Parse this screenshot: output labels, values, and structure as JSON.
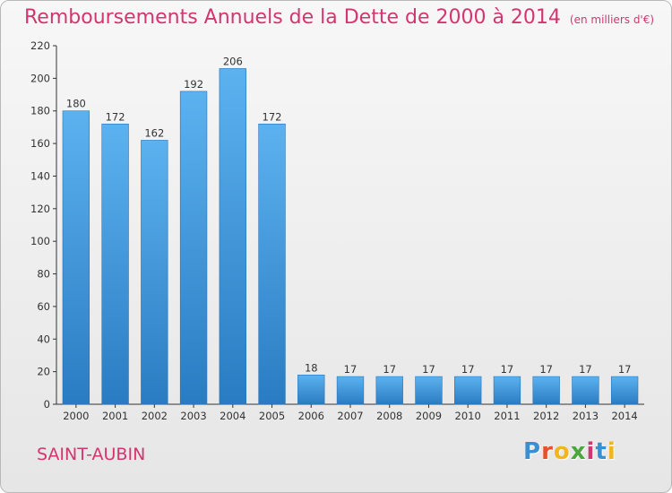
{
  "title": "Remboursements Annuels de la Dette de 2000 à 2014",
  "unit": "(en milliers d'€)",
  "commune": "SAINT-AUBIN",
  "logo": {
    "letters": [
      "P",
      "r",
      "o",
      "x",
      "i",
      "t",
      "i"
    ],
    "colors": [
      "#3a8fd0",
      "#e8502a",
      "#f2b51d",
      "#4aa83b",
      "#d4356f",
      "#3a8fd0",
      "#f2b51d"
    ]
  },
  "colors": {
    "bar": "#3a8fd6",
    "bar_light": "#5bb0ee",
    "bar_dark": "#2878bd",
    "title": "#d4356f",
    "axis": "#333333"
  },
  "chart_data": {
    "type": "bar",
    "title": "Remboursements Annuels de la Dette de 2000 à 2014",
    "xlabel": "",
    "ylabel": "",
    "categories": [
      "2000",
      "2001",
      "2002",
      "2003",
      "2004",
      "2005",
      "2006",
      "2007",
      "2008",
      "2009",
      "2010",
      "2011",
      "2012",
      "2013",
      "2014"
    ],
    "values": [
      180,
      172,
      162,
      192,
      206,
      172,
      18,
      17,
      17,
      17,
      17,
      17,
      17,
      17,
      17
    ],
    "ylim": [
      0,
      220
    ],
    "yticks": [
      0,
      20,
      40,
      60,
      80,
      100,
      120,
      140,
      160,
      180,
      200,
      220
    ],
    "grid": false,
    "legend": "none"
  }
}
